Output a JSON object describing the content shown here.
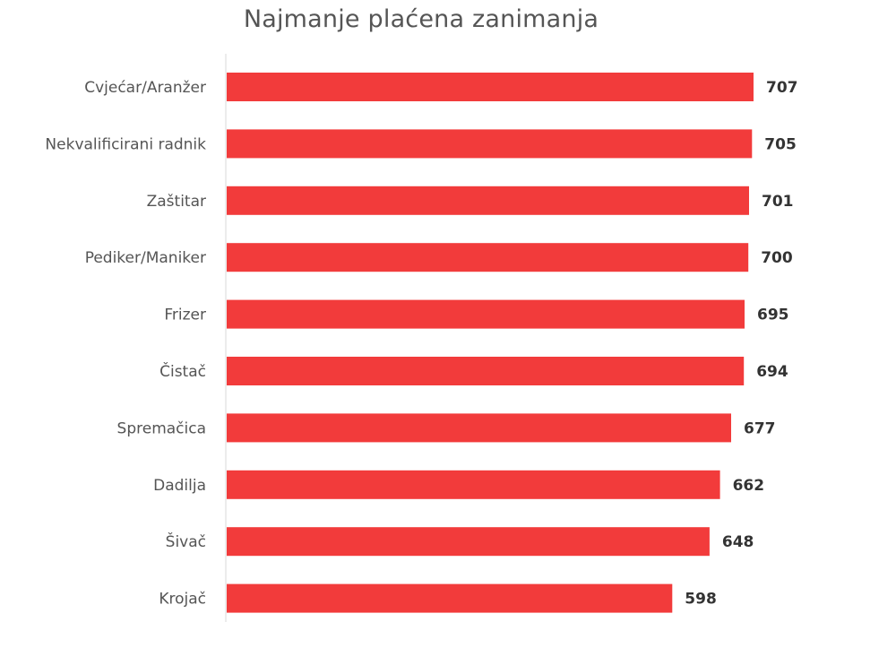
{
  "chart_data": {
    "type": "bar",
    "orientation": "horizontal",
    "title": "Najmanje plaćena zanimanja",
    "xlabel": "",
    "ylabel": "",
    "categories": [
      "Cvjećar/Aranžer",
      "Nekvalificirani radnik",
      "Zaštitar",
      "Pediker/Maniker",
      "Frizer",
      "Čistač",
      "Spremačica",
      "Dadilja",
      "Šivač",
      "Krojač"
    ],
    "values": [
      707,
      705,
      701,
      700,
      695,
      694,
      677,
      662,
      648,
      598
    ],
    "xlim": [
      0,
      707
    ],
    "grid": false,
    "legend": "none",
    "data_labels": true,
    "bar_color": "#f23b3b"
  }
}
